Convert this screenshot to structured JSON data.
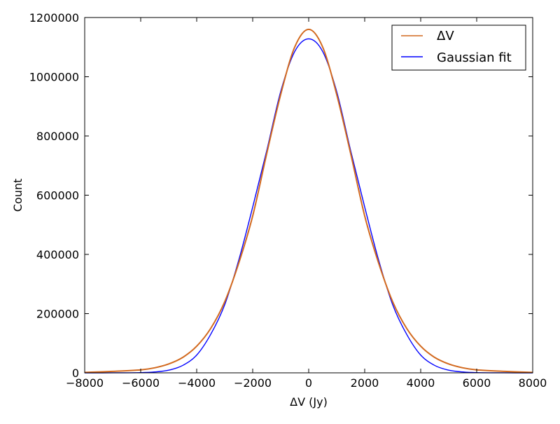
{
  "colors": {
    "delta_v_series": "#d2691e",
    "gaussian_fit_series": "#0000ff",
    "axes": "#000000",
    "background": "#ffffff"
  },
  "chart_data": {
    "type": "line",
    "title": "",
    "xlabel": "ΔV (Jy)",
    "ylabel": "Count",
    "xlim": [
      -8000,
      8000
    ],
    "ylim": [
      0,
      1200000
    ],
    "grid": false,
    "legend_position": "top-right",
    "xticks": [
      -8000,
      -6000,
      -4000,
      -2000,
      0,
      2000,
      4000,
      6000,
      8000
    ],
    "xtick_labels": [
      "−8000",
      "−6000",
      "−4000",
      "−2000",
      "0",
      "2000",
      "4000",
      "6000",
      "8000"
    ],
    "yticks": [
      0,
      200000,
      400000,
      600000,
      800000,
      1000000,
      1200000
    ],
    "ytick_labels": [
      "0",
      "200000",
      "400000",
      "600000",
      "800000",
      "1000000",
      "1200000"
    ],
    "series": [
      {
        "name": "ΔV",
        "color": "#d2691e",
        "x": [
          -8000,
          -7000,
          -6000,
          -5500,
          -5000,
          -4500,
          -4000,
          -3500,
          -3000,
          -2500,
          -2000,
          -1500,
          -1000,
          -500,
          0,
          500,
          1000,
          1500,
          2000,
          2500,
          3000,
          3500,
          4000,
          4500,
          5000,
          5500,
          6000,
          7000,
          8000
        ],
        "y": [
          1500,
          5000,
          10000,
          17000,
          30000,
          52000,
          90000,
          150000,
          240000,
          370000,
          530000,
          740000,
          940000,
          1100000,
          1160000,
          1100000,
          940000,
          740000,
          530000,
          370000,
          240000,
          150000,
          90000,
          52000,
          30000,
          17000,
          10000,
          5000,
          1500
        ]
      },
      {
        "name": "Gaussian fit",
        "color": "#0000ff",
        "x": [
          -8000,
          -7000,
          -6000,
          -5500,
          -5000,
          -4500,
          -4000,
          -3500,
          -3000,
          -2500,
          -2000,
          -1500,
          -1000,
          -500,
          0,
          500,
          1000,
          1500,
          2000,
          2500,
          3000,
          3500,
          4000,
          4500,
          5000,
          5500,
          6000,
          7000,
          8000
        ],
        "y": [
          0,
          100,
          800,
          3000,
          9000,
          25000,
          60000,
          130000,
          230000,
          380000,
          560000,
          750000,
          950000,
          1085000,
          1128000,
          1085000,
          950000,
          750000,
          560000,
          380000,
          230000,
          130000,
          60000,
          25000,
          9000,
          3000,
          800,
          100,
          0
        ]
      }
    ]
  }
}
